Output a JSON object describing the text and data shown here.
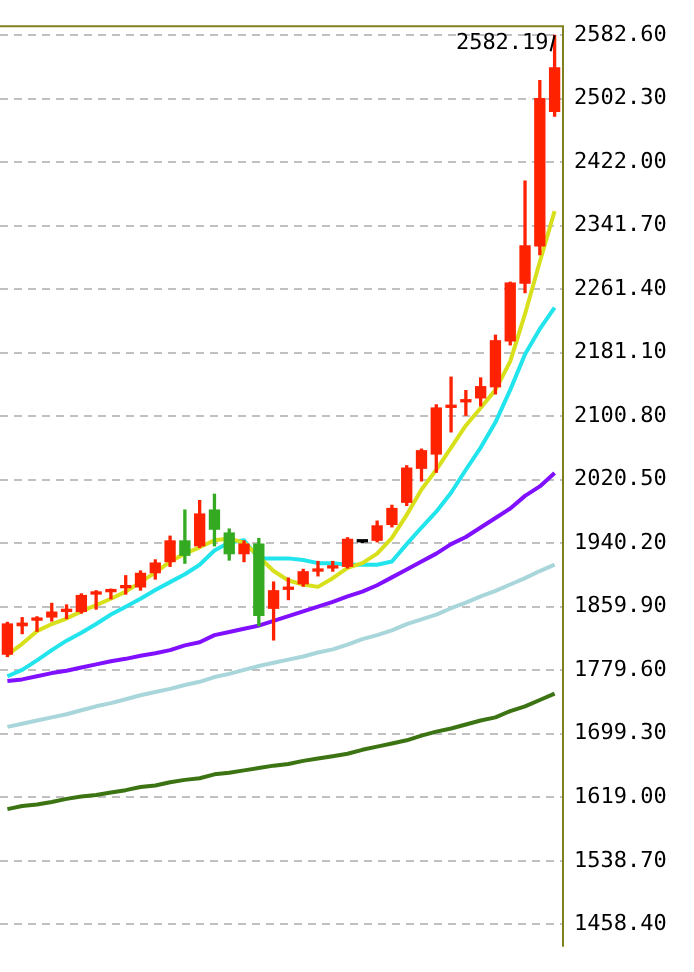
{
  "chart_data": {
    "type": "candlestick",
    "categories": [
      null,
      null,
      null,
      null,
      null,
      null,
      null,
      null,
      null,
      null,
      null,
      null,
      null,
      null,
      null,
      null,
      null,
      null,
      null,
      null,
      null,
      null,
      null,
      null,
      null,
      null,
      null,
      null,
      null,
      null,
      null,
      null,
      null,
      null,
      null,
      null,
      null,
      null
    ],
    "ohlc": [
      [
        1800,
        1840,
        1797,
        1838
      ],
      [
        1836,
        1846,
        1826,
        1839
      ],
      [
        1843,
        1847,
        1829,
        1845
      ],
      [
        1847,
        1864,
        1842,
        1853
      ],
      [
        1854,
        1862,
        1845,
        1856
      ],
      [
        1854,
        1876,
        1852,
        1874
      ],
      [
        1876,
        1880,
        1857,
        1877
      ],
      [
        1879,
        1882,
        1870,
        1881
      ],
      [
        1884,
        1899,
        1876,
        1885
      ],
      [
        1885,
        1905,
        1881,
        1902
      ],
      [
        1903,
        1919,
        1895,
        1915
      ],
      [
        1917,
        1949,
        1911,
        1943
      ],
      [
        1943,
        1982,
        1915,
        1925
      ],
      [
        1937,
        1994,
        1935,
        1977
      ],
      [
        1982,
        2002,
        1937,
        1958
      ],
      [
        1953,
        1958,
        1919,
        1927
      ],
      [
        1927,
        1943,
        1917,
        1939
      ],
      [
        1939,
        1946,
        1836,
        1849
      ],
      [
        1858,
        1891,
        1818,
        1880
      ],
      [
        1882,
        1896,
        1869,
        1884
      ],
      [
        1889,
        1907,
        1886,
        1904
      ],
      [
        1905,
        1917,
        1899,
        1907
      ],
      [
        1909,
        1917,
        1905,
        1911
      ],
      [
        1911,
        1947,
        1909,
        1945
      ],
      [
        1942,
        1943,
        1941,
        1942
      ],
      [
        1944,
        1968,
        1942,
        1962
      ],
      [
        1964,
        1988,
        1961,
        1984
      ],
      [
        1992,
        2038,
        1988,
        2035
      ],
      [
        2035,
        2059,
        2019,
        2057
      ],
      [
        2053,
        2115,
        2030,
        2111
      ],
      [
        2112,
        2150,
        2081,
        2114
      ],
      [
        2119,
        2133,
        2102,
        2121
      ],
      [
        2124,
        2149,
        2114,
        2138
      ],
      [
        2138,
        2203,
        2129,
        2196
      ],
      [
        2196,
        2270,
        2191,
        2269
      ],
      [
        2269,
        2398,
        2257,
        2316
      ],
      [
        2316,
        2525,
        2305,
        2502
      ],
      [
        2486,
        2582.19,
        2480,
        2541
      ]
    ],
    "colors": [
      "#ff2200",
      "#ff2200",
      "#ff2200",
      "#ff2200",
      "#ff2200",
      "#ff2200",
      "#ff2200",
      "#ff2200",
      "#ff2200",
      "#ff2200",
      "#ff2200",
      "#ff2200",
      "#33aa22",
      "#ff2200",
      "#33aa22",
      "#33aa22",
      "#ff2200",
      "#33aa22",
      "#ff2200",
      "#ff2200",
      "#ff2200",
      "#ff2200",
      "#ff2200",
      "#ff2200",
      "#000000",
      "#ff2200",
      "#ff2200",
      "#ff2200",
      "#ff2200",
      "#ff2200",
      "#ff2200",
      "#ff2200",
      "#ff2200",
      "#ff2200",
      "#ff2200",
      "#ff2200",
      "#ff2200",
      "#ff2200"
    ],
    "series": [
      {
        "type": "line",
        "color": "#d8e01c",
        "values": [
          1799,
          1813,
          1829,
          1838,
          1845,
          1854,
          1862,
          1870,
          1879,
          1891,
          1903,
          1917,
          1927,
          1935,
          1944,
          1946,
          1941,
          1923,
          1905,
          1893,
          1888,
          1885,
          1896,
          1909,
          1915,
          1927,
          1947,
          1976,
          2008,
          2033,
          2061,
          2089,
          2111,
          2134,
          2170,
          2230,
          2296,
          2360
        ]
      },
      {
        "type": "line",
        "color": "#22e4ec",
        "values": [
          1772,
          1780,
          1792,
          1805,
          1817,
          1827,
          1838,
          1850,
          1860,
          1870,
          1881,
          1891,
          1901,
          1913,
          1931,
          1941,
          1944,
          1921,
          1921,
          1921,
          1919,
          1915,
          1915,
          1913,
          1913,
          1913,
          1917,
          1939,
          1960,
          1980,
          2004,
          2033,
          2061,
          2093,
          2134,
          2179,
          2211,
          2238
        ]
      },
      {
        "type": "line",
        "color": "#8010ff",
        "values": [
          1766,
          1768,
          1772,
          1776,
          1779,
          1783,
          1787,
          1791,
          1794,
          1798,
          1801,
          1805,
          1811,
          1815,
          1824,
          1828,
          1832,
          1836,
          1842,
          1848,
          1854,
          1860,
          1866,
          1873,
          1879,
          1887,
          1897,
          1907,
          1917,
          1927,
          1939,
          1948,
          1960,
          1972,
          1984,
          2000,
          2012,
          2029
        ]
      },
      {
        "type": "line",
        "color": "#a8d6da",
        "values": [
          1708,
          1712,
          1716,
          1720,
          1724,
          1729,
          1734,
          1738,
          1743,
          1748,
          1752,
          1756,
          1761,
          1765,
          1771,
          1775,
          1780,
          1785,
          1789,
          1793,
          1797,
          1802,
          1806,
          1812,
          1819,
          1824,
          1830,
          1838,
          1844,
          1850,
          1858,
          1865,
          1873,
          1880,
          1888,
          1896,
          1905,
          1913
        ]
      },
      {
        "type": "line",
        "color": "#3c7414",
        "values": [
          1604,
          1608,
          1610,
          1613,
          1617,
          1620,
          1622,
          1625,
          1628,
          1632,
          1634,
          1638,
          1641,
          1643,
          1648,
          1650,
          1653,
          1656,
          1659,
          1661,
          1665,
          1668,
          1671,
          1674,
          1679,
          1683,
          1687,
          1691,
          1697,
          1702,
          1706,
          1711,
          1716,
          1720,
          1728,
          1734,
          1742,
          1750
        ]
      }
    ],
    "ylim": [
      1430,
      2595
    ],
    "yticks": [
      {
        "value": 2582.6,
        "label": "2582.60"
      },
      {
        "value": 2502.3,
        "label": "2502.30"
      },
      {
        "value": 2422,
        "label": "2422.00"
      },
      {
        "value": 2341.7,
        "label": "2341.70"
      },
      {
        "value": 2261.4,
        "label": "2261.40"
      },
      {
        "value": 2181.1,
        "label": "2181.10"
      },
      {
        "value": 2100.8,
        "label": "2100.80"
      },
      {
        "value": 2020.5,
        "label": "2020.50"
      },
      {
        "value": 1940.2,
        "label": "1940.20"
      },
      {
        "value": 1859.9,
        "label": "1859.90"
      },
      {
        "value": 1779.6,
        "label": "1779.60"
      },
      {
        "value": 1699.3,
        "label": "1699.30"
      },
      {
        "value": 1619,
        "label": "1619.00"
      },
      {
        "value": 1538.7,
        "label": "1538.70"
      },
      {
        "value": 1458.4,
        "label": "1458.40"
      }
    ],
    "grid": "y",
    "tick_labels": "y",
    "marker": "none",
    "line_style": "solid",
    "annotations": [
      "2582.19"
    ]
  }
}
